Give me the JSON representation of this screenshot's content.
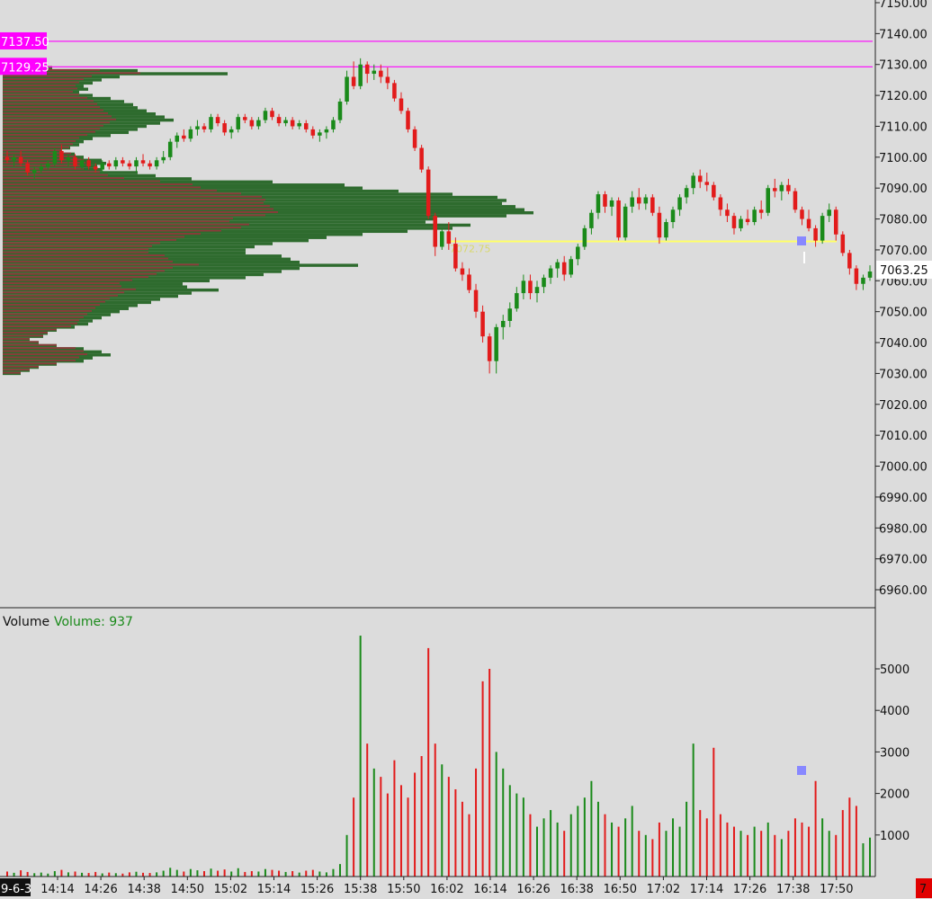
{
  "chart_data": {
    "type": "candlestick",
    "price_axis": {
      "ylim": [
        6955,
        7150
      ],
      "ticks": [
        "7150.00",
        "7140.00",
        "7130.00",
        "7120.00",
        "7110.00",
        "7100.00",
        "7090.00",
        "7080.00",
        "7070.00",
        "7060.00",
        "7050.00",
        "7040.00",
        "7030.00",
        "7020.00",
        "7010.00",
        "7000.00",
        "6990.00",
        "6980.00",
        "6970.00",
        "6960.00"
      ]
    },
    "volume_axis": {
      "ylim": [
        0,
        6000
      ],
      "ticks": [
        "5000",
        "4000",
        "3000",
        "2000",
        "1000"
      ]
    },
    "time_ticks": [
      "14:14",
      "14:26",
      "14:38",
      "14:50",
      "15:02",
      "15:14",
      "15:26",
      "15:38",
      "15:50",
      "16:02",
      "16:14",
      "16:26",
      "16:38",
      "16:50",
      "17:02",
      "17:14",
      "17:26",
      "17:38",
      "17:50"
    ],
    "date_label": "9-6-3",
    "last_price": "7063.25",
    "last_price_color": "#ffffff",
    "levels": [
      {
        "label": "7137.50",
        "price": 7137.5,
        "color": "#ff00ff"
      },
      {
        "label": "7129.25",
        "price": 7129.25,
        "color": "#ff00ff"
      }
    ],
    "poc": {
      "label": "7072.75",
      "price": 7072.75,
      "color": "#ffff66"
    },
    "volume_title": "Volume",
    "volume_value_label": "Volume: 937",
    "corner_badge": "7",
    "colors": {
      "up": "#1a8a1a",
      "down": "#e21b1b",
      "profile_green": "#2e6b2e",
      "profile_red": "#8b3a3a",
      "marker": "#8888ff"
    },
    "profile": [
      [
        7129,
        55
      ],
      [
        7128,
        150
      ],
      [
        7127,
        250
      ],
      [
        7126,
        130
      ],
      [
        7125,
        110
      ],
      [
        7124,
        100
      ],
      [
        7123,
        90
      ],
      [
        7122,
        95
      ],
      [
        7121,
        85
      ],
      [
        7120,
        100
      ],
      [
        7119,
        120
      ],
      [
        7118,
        135
      ],
      [
        7117,
        145
      ],
      [
        7116,
        150
      ],
      [
        7115,
        160
      ],
      [
        7114,
        170
      ],
      [
        7113,
        180
      ],
      [
        7112,
        190
      ],
      [
        7111,
        175
      ],
      [
        7110,
        160
      ],
      [
        7109,
        150
      ],
      [
        7108,
        140
      ],
      [
        7107,
        120
      ],
      [
        7106,
        100
      ],
      [
        7105,
        90
      ],
      [
        7104,
        85
      ],
      [
        7103,
        75
      ],
      [
        7102,
        65
      ],
      [
        7101,
        80
      ],
      [
        7100,
        90
      ],
      [
        7099,
        110
      ],
      [
        7098,
        115
      ],
      [
        7097,
        105
      ],
      [
        7096,
        110
      ],
      [
        7095,
        150
      ],
      [
        7094,
        170
      ],
      [
        7093,
        210
      ],
      [
        7092,
        300
      ],
      [
        7091,
        380
      ],
      [
        7090,
        400
      ],
      [
        7089,
        440
      ],
      [
        7088,
        500
      ],
      [
        7087,
        550
      ],
      [
        7086,
        560
      ],
      [
        7085,
        555
      ],
      [
        7084,
        570
      ],
      [
        7083,
        580
      ],
      [
        7082,
        590
      ],
      [
        7081,
        560
      ],
      [
        7080,
        480
      ],
      [
        7079,
        470
      ],
      [
        7078,
        520
      ],
      [
        7077,
        500
      ],
      [
        7076,
        450
      ],
      [
        7075,
        400
      ],
      [
        7074,
        360
      ],
      [
        7073,
        340
      ],
      [
        7072,
        300
      ],
      [
        7071,
        280
      ],
      [
        7070,
        270
      ],
      [
        7069,
        270
      ],
      [
        7068,
        310
      ],
      [
        7067,
        320
      ],
      [
        7066,
        330
      ],
      [
        7065,
        395
      ],
      [
        7064,
        330
      ],
      [
        7063,
        310
      ],
      [
        7062,
        290
      ],
      [
        7061,
        270
      ],
      [
        7060,
        230
      ],
      [
        7059,
        200
      ],
      [
        7058,
        205
      ],
      [
        7057,
        240
      ],
      [
        7056,
        210
      ],
      [
        7055,
        195
      ],
      [
        7054,
        175
      ],
      [
        7053,
        165
      ],
      [
        7052,
        150
      ],
      [
        7051,
        140
      ],
      [
        7050,
        130
      ],
      [
        7049,
        120
      ],
      [
        7048,
        110
      ],
      [
        7047,
        100
      ],
      [
        7046,
        95
      ],
      [
        7045,
        80
      ],
      [
        7044,
        60
      ],
      [
        7043,
        50
      ],
      [
        7042,
        45
      ],
      [
        7041,
        30
      ],
      [
        7040,
        40
      ],
      [
        7039,
        60
      ],
      [
        7038,
        90
      ],
      [
        7037,
        110
      ],
      [
        7036,
        120
      ],
      [
        7035,
        100
      ],
      [
        7034,
        90
      ],
      [
        7033,
        60
      ],
      [
        7032,
        40
      ],
      [
        7031,
        30
      ],
      [
        7030,
        20
      ]
    ],
    "candles": [
      [
        7100,
        7102,
        7098,
        7099,
        120
      ],
      [
        7099,
        7101,
        7097,
        7100,
        90
      ],
      [
        7100,
        7102,
        7097,
        7098,
        150
      ],
      [
        7098,
        7099,
        7094,
        7095,
        110
      ],
      [
        7095,
        7097,
        7093,
        7096,
        80
      ],
      [
        7096,
        7098,
        7095,
        7097,
        95
      ],
      [
        7097,
        7099,
        7096,
        7098,
        70
      ],
      [
        7098,
        7103,
        7097,
        7102,
        130
      ],
      [
        7102,
        7104,
        7098,
        7099,
        160
      ],
      [
        7099,
        7101,
        7097,
        7100,
        100
      ],
      [
        7100,
        7101,
        7096,
        7097,
        120
      ],
      [
        7097,
        7100,
        7096,
        7099,
        90
      ],
      [
        7099,
        7100,
        7096,
        7097,
        85
      ],
      [
        7097,
        7098,
        7095,
        7096,
        110
      ],
      [
        7096,
        7099,
        7095,
        7098,
        75
      ],
      [
        7098,
        7099,
        7096,
        7097,
        95
      ],
      [
        7097,
        7100,
        7096,
        7099,
        80
      ],
      [
        7099,
        7100,
        7097,
        7098,
        70
      ],
      [
        7098,
        7099,
        7096,
        7097,
        100
      ],
      [
        7097,
        7100,
        7095,
        7099,
        115
      ],
      [
        7099,
        7101,
        7097,
        7098,
        90
      ],
      [
        7098,
        7099,
        7096,
        7097,
        85
      ],
      [
        7097,
        7100,
        7096,
        7099,
        100
      ],
      [
        7099,
        7102,
        7098,
        7100,
        140
      ],
      [
        7100,
        7106,
        7099,
        7105,
        210
      ],
      [
        7105,
        7108,
        7103,
        7107,
        160
      ],
      [
        7107,
        7109,
        7105,
        7106,
        120
      ],
      [
        7106,
        7110,
        7105,
        7109,
        180
      ],
      [
        7109,
        7112,
        7107,
        7110,
        150
      ],
      [
        7110,
        7111,
        7108,
        7109,
        130
      ],
      [
        7109,
        7114,
        7108,
        7113,
        190
      ],
      [
        7113,
        7114,
        7110,
        7111,
        140
      ],
      [
        7111,
        7112,
        7107,
        7108,
        170
      ],
      [
        7108,
        7110,
        7106,
        7109,
        120
      ],
      [
        7109,
        7114,
        7108,
        7113,
        200
      ],
      [
        7113,
        7114,
        7111,
        7112,
        110
      ],
      [
        7112,
        7113,
        7109,
        7110,
        130
      ],
      [
        7110,
        7113,
        7109,
        7112,
        120
      ],
      [
        7112,
        7116,
        7111,
        7115,
        180
      ],
      [
        7115,
        7116,
        7112,
        7113,
        160
      ],
      [
        7113,
        7114,
        7110,
        7111,
        140
      ],
      [
        7111,
        7113,
        7110,
        7112,
        110
      ],
      [
        7112,
        7113,
        7109,
        7110,
        130
      ],
      [
        7110,
        7112,
        7109,
        7111,
        95
      ],
      [
        7111,
        7112,
        7108,
        7109,
        140
      ],
      [
        7109,
        7110,
        7106,
        7107,
        160
      ],
      [
        7107,
        7109,
        7105,
        7108,
        120
      ],
      [
        7108,
        7110,
        7106,
        7109,
        100
      ],
      [
        7109,
        7113,
        7108,
        7112,
        180
      ],
      [
        7112,
        7119,
        7111,
        7118,
        300
      ],
      [
        7118,
        7128,
        7117,
        7126,
        1000
      ],
      [
        7126,
        7131,
        7122,
        7123,
        1900
      ],
      [
        7123,
        7132,
        7122,
        7130,
        5800
      ],
      [
        7130,
        7131,
        7124,
        7127,
        3200
      ],
      [
        7127,
        7130,
        7125,
        7128,
        2600
      ],
      [
        7128,
        7130,
        7124,
        7126,
        2400
      ],
      [
        7126,
        7129,
        7122,
        7124,
        2000
      ],
      [
        7124,
        7125,
        7118,
        7119,
        2800
      ],
      [
        7119,
        7121,
        7114,
        7115,
        2200
      ],
      [
        7115,
        7116,
        7108,
        7109,
        1900
      ],
      [
        7109,
        7110,
        7102,
        7103,
        2500
      ],
      [
        7103,
        7104,
        7095,
        7096,
        2900
      ],
      [
        7096,
        7097,
        7080,
        7081,
        5500
      ],
      [
        7081,
        7082,
        7068,
        7071,
        3200
      ],
      [
        7071,
        7077,
        7070,
        7076,
        2700
      ],
      [
        7076,
        7079,
        7070,
        7072,
        2400
      ],
      [
        7072,
        7074,
        7063,
        7064,
        2100
      ],
      [
        7064,
        7066,
        7060,
        7062,
        1800
      ],
      [
        7062,
        7064,
        7056,
        7057,
        1500
      ],
      [
        7057,
        7059,
        7048,
        7050,
        2600
      ],
      [
        7050,
        7052,
        7040,
        7042,
        4700
      ],
      [
        7042,
        7043,
        7030,
        7034,
        5000
      ],
      [
        7034,
        7046,
        7030,
        7045,
        3000
      ],
      [
        7045,
        7049,
        7041,
        7047,
        2600
      ],
      [
        7047,
        7053,
        7045,
        7051,
        2200
      ],
      [
        7051,
        7058,
        7050,
        7056,
        2000
      ],
      [
        7056,
        7062,
        7054,
        7060,
        1900
      ],
      [
        7060,
        7062,
        7054,
        7056,
        1500
      ],
      [
        7056,
        7060,
        7053,
        7058,
        1200
      ],
      [
        7058,
        7062,
        7056,
        7061,
        1400
      ],
      [
        7061,
        7065,
        7059,
        7064,
        1600
      ],
      [
        7064,
        7067,
        7061,
        7066,
        1300
      ],
      [
        7066,
        7068,
        7060,
        7062,
        1100
      ],
      [
        7062,
        7068,
        7061,
        7067,
        1500
      ],
      [
        7067,
        7072,
        7065,
        7071,
        1700
      ],
      [
        7071,
        7078,
        7070,
        7077,
        1900
      ],
      [
        7077,
        7083,
        7075,
        7082,
        2300
      ],
      [
        7082,
        7089,
        7080,
        7088,
        1800
      ],
      [
        7088,
        7089,
        7082,
        7084,
        1500
      ],
      [
        7084,
        7087,
        7081,
        7086,
        1300
      ],
      [
        7086,
        7087,
        7073,
        7074,
        1200
      ],
      [
        7074,
        7085,
        7073,
        7084,
        1400
      ],
      [
        7084,
        7089,
        7082,
        7087,
        1700
      ],
      [
        7087,
        7090,
        7083,
        7085,
        1100
      ],
      [
        7085,
        7088,
        7083,
        7087,
        1000
      ],
      [
        7087,
        7088,
        7081,
        7082,
        900
      ],
      [
        7082,
        7084,
        7072,
        7074,
        1300
      ],
      [
        7074,
        7080,
        7073,
        7079,
        1100
      ],
      [
        7079,
        7084,
        7077,
        7083,
        1400
      ],
      [
        7083,
        7088,
        7081,
        7087,
        1200
      ],
      [
        7087,
        7091,
        7085,
        7090,
        1800
      ],
      [
        7090,
        7095,
        7088,
        7094,
        3200
      ],
      [
        7094,
        7096,
        7090,
        7092,
        1600
      ],
      [
        7092,
        7095,
        7089,
        7091,
        1400
      ],
      [
        7091,
        7092,
        7086,
        7087,
        3100
      ],
      [
        7087,
        7088,
        7081,
        7083,
        1500
      ],
      [
        7083,
        7085,
        7079,
        7081,
        1300
      ],
      [
        7081,
        7082,
        7075,
        7077,
        1200
      ],
      [
        7077,
        7081,
        7076,
        7080,
        1100
      ],
      [
        7080,
        7083,
        7078,
        7079,
        1000
      ],
      [
        7079,
        7084,
        7078,
        7083,
        1200
      ],
      [
        7083,
        7086,
        7080,
        7082,
        1100
      ],
      [
        7082,
        7091,
        7081,
        7090,
        1300
      ],
      [
        7090,
        7093,
        7087,
        7089,
        1000
      ],
      [
        7089,
        7092,
        7086,
        7091,
        900
      ],
      [
        7091,
        7093,
        7088,
        7089,
        1100
      ],
      [
        7089,
        7090,
        7082,
        7083,
        1400
      ],
      [
        7083,
        7084,
        7078,
        7080,
        1300
      ],
      [
        7080,
        7083,
        7076,
        7077,
        1200
      ],
      [
        7077,
        7078,
        7071,
        7073,
        2300
      ],
      [
        7073,
        7082,
        7072,
        7081,
        1400
      ],
      [
        7081,
        7085,
        7079,
        7083,
        1100
      ],
      [
        7083,
        7084,
        7073,
        7075,
        1000
      ],
      [
        7075,
        7076,
        7068,
        7069,
        1600
      ],
      [
        7069,
        7070,
        7062,
        7064,
        1900
      ],
      [
        7064,
        7065,
        7057,
        7059,
        1700
      ],
      [
        7059,
        7062,
        7057,
        7061,
        800
      ],
      [
        7061,
        7065,
        7060,
        7063,
        937
      ]
    ]
  }
}
